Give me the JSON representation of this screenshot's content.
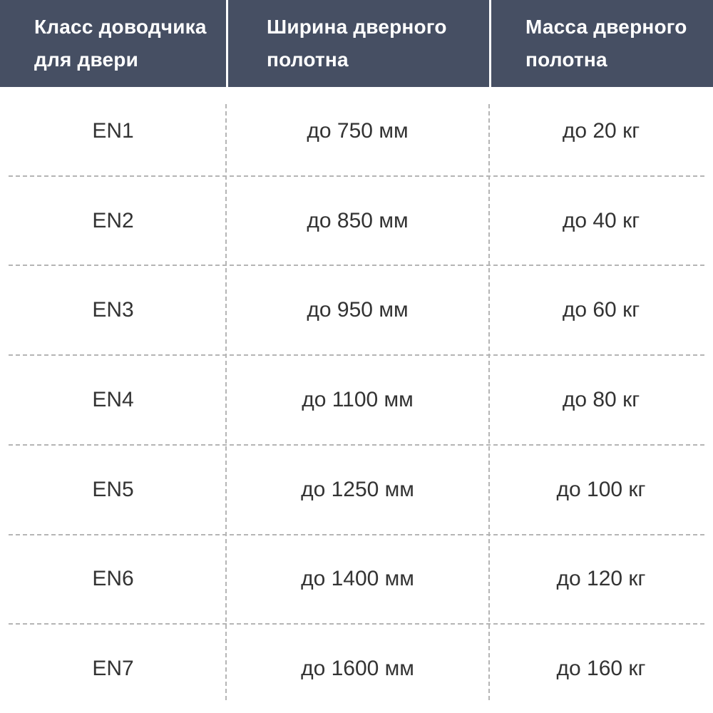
{
  "table": {
    "columns": [
      {
        "label": "Класс доводчика для двери"
      },
      {
        "label": "Ширина дверного полотна"
      },
      {
        "label": "Масса дверного полотна"
      }
    ],
    "rows": [
      {
        "closer_class": "EN1",
        "door_width": "до 750 мм",
        "door_mass": "до 20 кг"
      },
      {
        "closer_class": "EN2",
        "door_width": "до 850 мм",
        "door_mass": "до 40 кг"
      },
      {
        "closer_class": "EN3",
        "door_width": "до 950 мм",
        "door_mass": "до 60 кг"
      },
      {
        "closer_class": "EN4",
        "door_width": "до 1100 мм",
        "door_mass": "до 80 кг"
      },
      {
        "closer_class": "EN5",
        "door_width": "до 1250 мм",
        "door_mass": "до 100 кг"
      },
      {
        "closer_class": "EN6",
        "door_width": "до 1400 мм",
        "door_mass": "до 120 кг"
      },
      {
        "closer_class": "EN7",
        "door_width": "до 1600 мм",
        "door_mass": "до 160 кг"
      }
    ]
  },
  "colors": {
    "header_bg": "#464f63",
    "header_text": "#ffffff",
    "body_text": "#333333",
    "divider_dash": "#b5b5b5",
    "header_divider": "#ffffff"
  },
  "chart_data": {
    "type": "table",
    "title": "",
    "columns": [
      "Класс доводчика для двери",
      "Ширина дверного полотна",
      "Масса дверного полотна"
    ],
    "rows": [
      [
        "EN1",
        "до 750 мм",
        "до 20 кг"
      ],
      [
        "EN2",
        "до 850 мм",
        "до 40 кг"
      ],
      [
        "EN3",
        "до 950 мм",
        "до 60 кг"
      ],
      [
        "EN4",
        "до 1100 мм",
        "до 80 кг"
      ],
      [
        "EN5",
        "до 1250 мм",
        "до 100 кг"
      ],
      [
        "EN6",
        "до 1400 мм",
        "до 120 кг"
      ],
      [
        "EN7",
        "до 1600 мм",
        "до 160 кг"
      ]
    ],
    "layout_hints": {
      "header_style": "dark slate background, white bold text, white solid column dividers",
      "body_style": "white background, gray dashed row and column dividers, centered values"
    }
  }
}
